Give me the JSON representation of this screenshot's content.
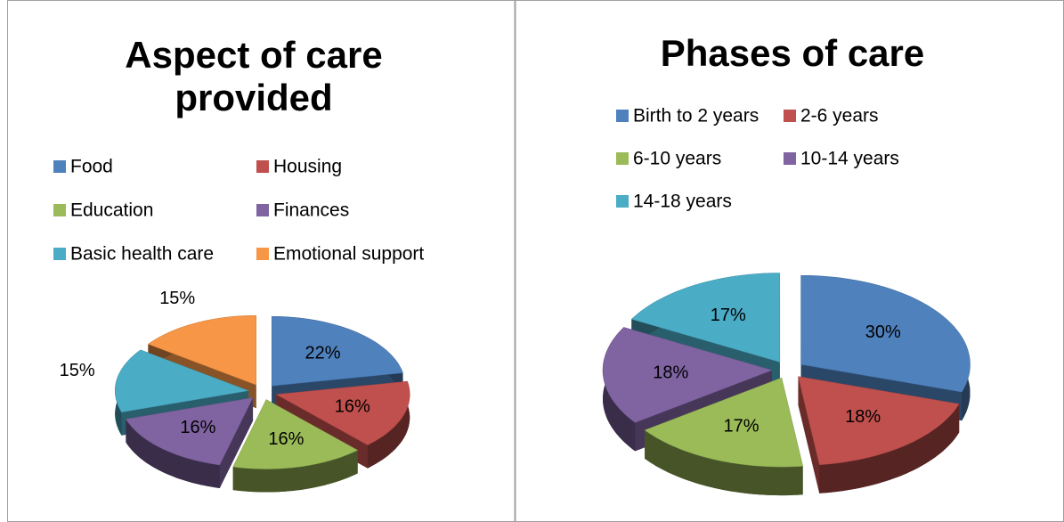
{
  "chart_data": [
    {
      "type": "pie3d",
      "title": "Aspect of care provided",
      "categories": [
        "Food",
        "Housing",
        "Education",
        "Finances",
        "Basic health care",
        "Emotional support"
      ],
      "values": [
        22,
        16,
        16,
        16,
        15,
        15
      ],
      "value_labels": [
        "22%",
        "16%",
        "16%",
        "16%",
        "15%",
        "15%"
      ],
      "colors": [
        "#4f81bd",
        "#c0504d",
        "#9bbb59",
        "#8064a2",
        "#4bacc6",
        "#f79646"
      ]
    },
    {
      "type": "pie3d",
      "title": "Phases of care",
      "categories": [
        "Birth to 2 years",
        "2-6 years",
        "6-10 years",
        "10-14 years",
        "14-18 years"
      ],
      "values": [
        30,
        18,
        17,
        18,
        17
      ],
      "value_labels": [
        "30%",
        "18%",
        "17%",
        "18%",
        "17%"
      ],
      "colors": [
        "#4f81bd",
        "#c0504d",
        "#9bbb59",
        "#8064a2",
        "#4bacc6"
      ]
    }
  ]
}
